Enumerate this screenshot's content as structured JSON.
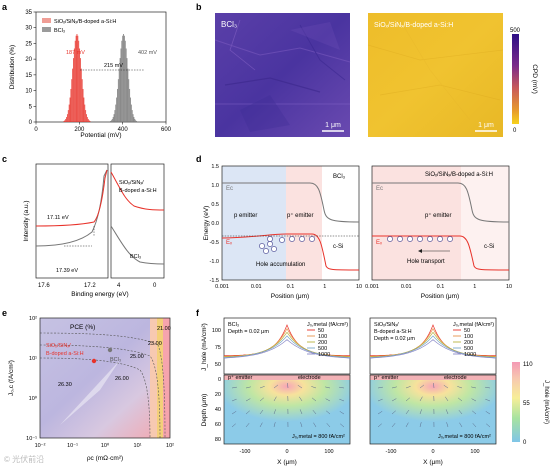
{
  "panels": {
    "a": "a",
    "b": "b",
    "c": "c",
    "d": "d",
    "e": "e",
    "f": "f"
  },
  "colors": {
    "red": "#e8322a",
    "gray": "#777777",
    "blue_region": "#dfe8f6",
    "pink_region": "#fbe3e1",
    "cpd_high": "#2c0f86",
    "cpd_low": "#f4c41a"
  },
  "panel_b": {
    "left_label": "BCl₃",
    "right_label": "SiOₓ/SiNₓ/B-doped a-Si:H",
    "scalebar_left": "1 μm",
    "scalebar_right": "1 μm",
    "colorbar_title": "CPD (mV)",
    "colorbar_max": "500",
    "colorbar_min": "0"
  },
  "panel_d": {
    "left_title": "BCl₃",
    "right_title": "SiOₓ/SiNₓ/B-doped a-Si:H",
    "ec": "Eᴄ",
    "ev": "Eᵥ",
    "left_labels": {
      "p_emitter": "p emitter",
      "pplus_emitter": "p⁺ emitter",
      "csi": "c-Si",
      "hole": "Hole accumulation"
    },
    "right_labels": {
      "pplus_emitter": "p⁺ emitter",
      "csi": "c-Si",
      "hole": "Hole transport"
    }
  },
  "panel_f": {
    "left_legend_1": "BCl₃",
    "left_legend_2": "Depth = 0.02 μm",
    "right_legend_1": "SiOₓ/SiNₓ/",
    "right_legend_2": "B-doped a-Si:H",
    "right_legend_3": "Depth = 0.02 μm",
    "legend_title": "J₀,metal (fA/cm²)",
    "legend_values": [
      "50",
      "100",
      "200",
      "500",
      "1000"
    ],
    "pplus": "p⁺ emitter",
    "electrode": "electrode",
    "j0_label_left": "J₀,metal = 800 fA/cm²",
    "j0_label_right": "J₀,metal = 800 fA/cm²",
    "cbar_title": "J_hole (mA/cm²)",
    "cbar_ticks": [
      "110",
      "55",
      "0"
    ]
  },
  "watermark": "© 光伏前沿",
  "chart_data": [
    {
      "id": "a",
      "type": "bar",
      "title": "",
      "xlabel": "Potential (mV)",
      "ylabel": "Distribution (%)",
      "xlim": [
        0,
        600
      ],
      "ylim": [
        0,
        35
      ],
      "xticks": [
        0,
        200,
        400,
        600
      ],
      "yticks": [
        0,
        5,
        10,
        15,
        20,
        25,
        30,
        35
      ],
      "series": [
        {
          "name": "SiOₓ/SiNₓ/B-doped a-Si:H",
          "color": "#e8322a",
          "mean": 187,
          "sigma": 20,
          "peak": 28
        },
        {
          "name": "BCl₃",
          "color": "#777777",
          "mean": 402,
          "sigma": 20,
          "peak": 28
        }
      ],
      "annotations": [
        "187 mV",
        "402 mV",
        "215 mV"
      ]
    },
    {
      "id": "c",
      "type": "line",
      "xlabel": "Binding energy (eV)",
      "ylabel": "Intensity (a.u.)",
      "xticks_left": [
        "17.6",
        "17.2"
      ],
      "xticks_right": [
        "4",
        "0"
      ],
      "series": [
        {
          "name": "SiOₓ/SiNₓ/B-doped a-Si:H",
          "color": "#e8322a",
          "edge": "17.11 eV"
        },
        {
          "name": "BCl₃",
          "color": "#777777",
          "edge": "17.39 eV"
        }
      ]
    },
    {
      "id": "d",
      "type": "line",
      "xlabel": "Position (μm)",
      "ylabel": "Energy (eV)",
      "xscale": "log",
      "xticks": [
        "0.001",
        "0.01",
        "0.1",
        "1",
        "10"
      ],
      "ylim": [
        -1.5,
        1.5
      ],
      "yticks": [
        "-1.5",
        "-1.0",
        "-0.5",
        "0.0",
        "0.5",
        "1.0",
        "1.5"
      ]
    },
    {
      "id": "e",
      "type": "heatmap",
      "title": "PCE (%)",
      "xlabel": "ρc (mΩ·cm²)",
      "ylabel": "J₀,c (fA/cm²)",
      "xscale": "log",
      "yscale": "log",
      "xticks": [
        "10⁻²",
        "10⁻¹",
        "10⁰",
        "10¹",
        "10²"
      ],
      "yticks": [
        "10⁻¹",
        "10⁰",
        "10¹",
        "10²"
      ],
      "contours": [
        "26.30",
        "26.00",
        "25.00",
        "23.00",
        "21.00"
      ],
      "points": [
        {
          "name": "SiOₓ/SiNₓ/ B-doped a-Si:H",
          "color": "#e8322a"
        },
        {
          "name": "BCl₃",
          "color": "#777777"
        }
      ]
    },
    {
      "id": "f",
      "type": "line",
      "xlabel": "X (μm)",
      "ylabel": "J_hole (mA/cm²)",
      "xticks": [
        "-100",
        "0",
        "100"
      ],
      "yticks": [
        "50",
        "75",
        "100"
      ],
      "depth_label": "Depth (μm)",
      "depth_ticks": [
        "0",
        "20",
        "40",
        "60",
        "80"
      ]
    }
  ]
}
